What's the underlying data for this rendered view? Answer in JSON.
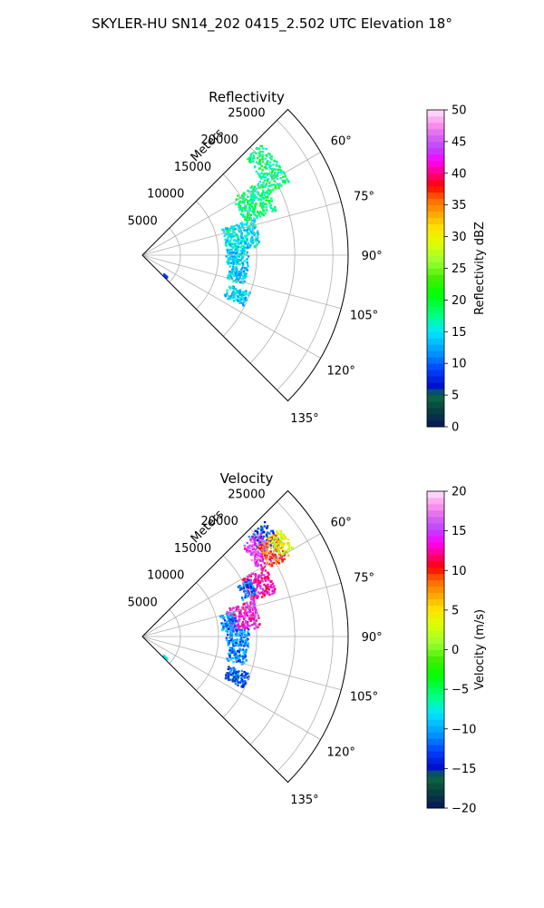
{
  "figure_title": "SKYLER-HU  SN14_202  0415_2.502 UTC Elevation 18°",
  "chart_data": [
    {
      "type": "heatmap",
      "projection": "polar-sector",
      "title": "Reflectivity",
      "radial_label": "Meters",
      "r_ticks": [
        5000,
        10000,
        15000,
        20000,
        25000
      ],
      "r_tick_labels": [
        "5000",
        "10000",
        "15000",
        "20000",
        "25000"
      ],
      "rlim": [
        0,
        27000
      ],
      "theta_range_deg": [
        45,
        135
      ],
      "theta_ticks_deg": [
        60,
        75,
        90,
        105,
        120,
        135
      ],
      "theta_tick_labels": [
        "60°",
        "75°",
        "90°",
        "105°",
        "120°",
        "135°"
      ],
      "grid": true,
      "colorbar": {
        "label": "Reflectivity dBZ",
        "range": [
          0,
          50
        ],
        "ticks": [
          0,
          5,
          10,
          15,
          20,
          25,
          30,
          35,
          40,
          45,
          50
        ],
        "tick_labels": [
          "0",
          "5",
          "10",
          "15",
          "20",
          "25",
          "30",
          "35",
          "40",
          "45",
          "50"
        ]
      },
      "echoes": [
        {
          "theta": [
            47,
            64
          ],
          "r": [
            18500,
            21500
          ],
          "value": 18
        },
        {
          "theta": [
            58,
            72
          ],
          "r": [
            14000,
            18500
          ],
          "value": 18
        },
        {
          "theta": [
            72,
            86
          ],
          "r": [
            11000,
            15500
          ],
          "value": 15
        },
        {
          "theta": [
            86,
            96
          ],
          "r": [
            11000,
            14000
          ],
          "value": 14
        },
        {
          "theta": [
            97,
            106
          ],
          "r": [
            11500,
            14000
          ],
          "value": 14
        },
        {
          "theta": [
            109,
            117
          ],
          "r": [
            12000,
            15000
          ],
          "value": 14
        },
        {
          "theta": [
            131,
            133
          ],
          "r": [
            3800,
            4400
          ],
          "value": 8
        }
      ]
    },
    {
      "type": "heatmap",
      "projection": "polar-sector",
      "title": "Velocity",
      "radial_label": "Meters",
      "r_ticks": [
        5000,
        10000,
        15000,
        20000,
        25000
      ],
      "r_tick_labels": [
        "5000",
        "10000",
        "15000",
        "20000",
        "25000"
      ],
      "rlim": [
        0,
        27000
      ],
      "theta_range_deg": [
        45,
        135
      ],
      "theta_ticks_deg": [
        60,
        75,
        90,
        105,
        120,
        135
      ],
      "theta_tick_labels": [
        "60°",
        "75°",
        "90°",
        "105°",
        "120°",
        "135°"
      ],
      "grid": true,
      "colorbar": {
        "label": "Velocity (m/s)",
        "range": [
          -20,
          20
        ],
        "ticks": [
          -20,
          -15,
          -10,
          -5,
          0,
          5,
          10,
          15,
          20
        ],
        "tick_labels": [
          "−20",
          "−15",
          "−10",
          "−5",
          "0",
          "5",
          "10",
          "15",
          "20"
        ]
      },
      "echoes": [
        {
          "theta": [
            47,
            56
          ],
          "r": [
            19000,
            22000
          ],
          "value": -13
        },
        {
          "theta": [
            48,
            60
          ],
          "r": [
            17500,
            20500
          ],
          "value": 15
        },
        {
          "theta": [
            52,
            62
          ],
          "r": [
            19000,
            22000
          ],
          "value": 9
        },
        {
          "theta": [
            52,
            60
          ],
          "r": [
            21000,
            23000
          ],
          "value": 3
        },
        {
          "theta": [
            60,
            72
          ],
          "r": [
            15000,
            18500
          ],
          "value": 13
        },
        {
          "theta": [
            62,
            70
          ],
          "r": [
            14000,
            16000
          ],
          "value": -12
        },
        {
          "theta": [
            72,
            86
          ],
          "r": [
            11500,
            15500
          ],
          "value": 14
        },
        {
          "theta": [
            75,
            86
          ],
          "r": [
            10500,
            12500
          ],
          "value": -11
        },
        {
          "theta": [
            86,
            96
          ],
          "r": [
            11000,
            14000
          ],
          "value": -11
        },
        {
          "theta": [
            97,
            106
          ],
          "r": [
            11500,
            14000
          ],
          "value": -11
        },
        {
          "theta": [
            109,
            117
          ],
          "r": [
            12000,
            15000
          ],
          "value": -13
        },
        {
          "theta": [
            131,
            133
          ],
          "r": [
            3800,
            4400
          ],
          "value": -7
        }
      ]
    }
  ]
}
